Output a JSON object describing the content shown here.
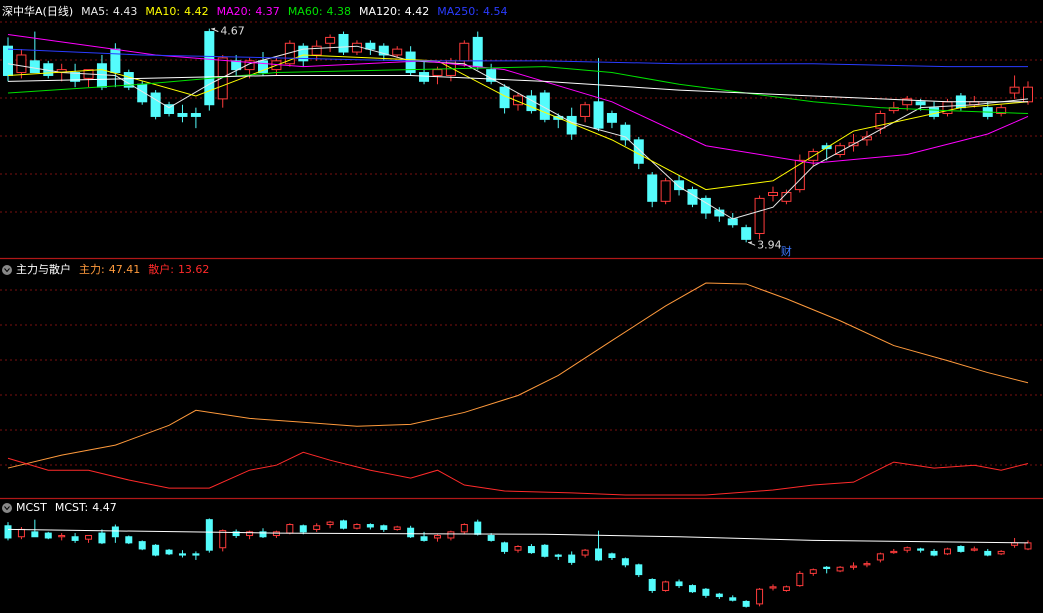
{
  "chart_data": [
    {
      "type": "candlestick",
      "title": "深中华A(日线)",
      "label_separator": ":",
      "up_color": "#ff3c3c",
      "down_color": "#54fcfc",
      "ylim": [
        3.9,
        4.72
      ],
      "open": [
        4.61,
        4.52,
        4.56,
        4.55,
        4.52,
        4.52,
        4.5,
        4.55,
        4.6,
        4.52,
        4.48,
        4.45,
        4.41,
        4.38,
        4.38,
        4.66,
        4.43,
        4.56,
        4.53,
        4.56,
        4.53,
        4.55,
        4.61,
        4.58,
        4.62,
        4.65,
        4.59,
        4.62,
        4.61,
        4.58,
        4.59,
        4.52,
        4.51,
        4.51,
        4.56,
        4.64,
        4.53,
        4.47,
        4.41,
        4.44,
        4.45,
        4.37,
        4.37,
        4.37,
        4.42,
        4.38,
        4.34,
        4.29,
        4.17,
        4.08,
        4.15,
        4.12,
        4.09,
        4.05,
        4.02,
        3.99,
        3.97,
        4.1,
        4.08,
        4.12,
        4.22,
        4.27,
        4.24,
        4.27,
        4.29,
        4.33,
        4.39,
        4.41,
        4.42,
        4.4,
        4.38,
        4.44,
        4.41,
        4.4,
        4.38,
        4.45,
        4.42
      ],
      "high": [
        4.64,
        4.6,
        4.66,
        4.56,
        4.55,
        4.55,
        4.53,
        4.58,
        4.62,
        4.53,
        4.49,
        4.46,
        4.42,
        4.41,
        4.4,
        4.67,
        4.58,
        4.58,
        4.57,
        4.59,
        4.57,
        4.63,
        4.62,
        4.63,
        4.65,
        4.66,
        4.63,
        4.63,
        4.62,
        4.61,
        4.61,
        4.56,
        4.54,
        4.57,
        4.63,
        4.66,
        4.55,
        4.48,
        4.45,
        4.46,
        4.46,
        4.38,
        4.4,
        4.42,
        4.57,
        4.39,
        4.35,
        4.3,
        4.18,
        4.16,
        4.17,
        4.13,
        4.1,
        4.06,
        4.04,
        4.0,
        4.1,
        4.13,
        4.12,
        4.24,
        4.26,
        4.28,
        4.28,
        4.31,
        4.32,
        4.39,
        4.42,
        4.44,
        4.43,
        4.42,
        4.43,
        4.45,
        4.44,
        4.42,
        4.41,
        4.51,
        4.49
      ],
      "low": [
        4.49,
        4.5,
        4.52,
        4.5,
        4.49,
        4.47,
        4.47,
        4.46,
        4.47,
        4.46,
        4.41,
        4.36,
        4.37,
        4.35,
        4.33,
        4.39,
        4.4,
        4.51,
        4.5,
        4.51,
        4.51,
        4.54,
        4.54,
        4.56,
        4.59,
        4.58,
        4.58,
        4.58,
        4.56,
        4.57,
        4.51,
        4.48,
        4.48,
        4.49,
        4.54,
        4.53,
        4.48,
        4.38,
        4.39,
        4.38,
        4.35,
        4.33,
        4.29,
        4.35,
        4.32,
        4.33,
        4.27,
        4.19,
        4.06,
        4.07,
        4.1,
        4.06,
        4.02,
        4.01,
        3.99,
        3.94,
        3.95,
        4.08,
        4.07,
        4.11,
        4.2,
        4.22,
        4.23,
        4.25,
        4.27,
        4.31,
        4.38,
        4.39,
        4.39,
        4.36,
        4.37,
        4.39,
        4.4,
        4.36,
        4.37,
        4.43,
        4.41
      ],
      "close": [
        4.51,
        4.58,
        4.52,
        4.51,
        4.53,
        4.49,
        4.53,
        4.47,
        4.52,
        4.47,
        4.42,
        4.37,
        4.38,
        4.37,
        4.37,
        4.41,
        4.57,
        4.53,
        4.56,
        4.52,
        4.56,
        4.62,
        4.56,
        4.61,
        4.64,
        4.59,
        4.62,
        4.6,
        4.58,
        4.6,
        4.52,
        4.49,
        4.53,
        4.56,
        4.62,
        4.54,
        4.49,
        4.4,
        4.44,
        4.39,
        4.36,
        4.36,
        4.31,
        4.41,
        4.33,
        4.35,
        4.29,
        4.21,
        4.08,
        4.15,
        4.12,
        4.07,
        4.04,
        4.03,
        4.0,
        3.95,
        4.09,
        4.11,
        4.11,
        4.22,
        4.25,
        4.26,
        4.27,
        4.28,
        4.3,
        4.38,
        4.4,
        4.43,
        4.41,
        4.37,
        4.42,
        4.4,
        4.42,
        4.37,
        4.4,
        4.47,
        4.47
      ],
      "series": [
        {
          "name": "MA5",
          "color": "#e8e8e8",
          "x": [
            0,
            4,
            8,
            12,
            15,
            18,
            22,
            26,
            30,
            34,
            38,
            42,
            46,
            50,
            54,
            57,
            60,
            64,
            68,
            72,
            76
          ],
          "values": [
            4.55,
            4.52,
            4.51,
            4.4,
            4.48,
            4.55,
            4.6,
            4.61,
            4.56,
            4.55,
            4.45,
            4.35,
            4.3,
            4.13,
            4.02,
            4.06,
            4.2,
            4.3,
            4.4,
            4.41,
            4.43
          ]
        },
        {
          "name": "MA10",
          "color": "#ffff00",
          "x": [
            0,
            7,
            14,
            22,
            32,
            37,
            45,
            52,
            57,
            63,
            71,
            76
          ],
          "values": [
            4.51,
            4.53,
            4.44,
            4.58,
            4.56,
            4.44,
            4.29,
            4.12,
            4.15,
            4.32,
            4.4,
            4.42
          ]
        },
        {
          "name": "MA20",
          "color": "#ff00ff",
          "x": [
            0,
            11,
            22,
            31,
            37,
            45,
            52,
            60,
            67,
            73,
            76
          ],
          "values": [
            4.65,
            4.58,
            4.54,
            4.56,
            4.53,
            4.42,
            4.27,
            4.21,
            4.24,
            4.31,
            4.37
          ]
        },
        {
          "name": "MA60",
          "color": "#00e000",
          "x": [
            0,
            10,
            20,
            30,
            40,
            45,
            50,
            55,
            60,
            65,
            70,
            76
          ],
          "values": [
            4.45,
            4.48,
            4.52,
            4.53,
            4.54,
            4.52,
            4.48,
            4.45,
            4.42,
            4.4,
            4.39,
            4.38
          ]
        },
        {
          "name": "MA120",
          "color": "#ffffff",
          "x": [
            0,
            10,
            20,
            30,
            40,
            50,
            60,
            70,
            76
          ],
          "values": [
            4.49,
            4.5,
            4.51,
            4.51,
            4.49,
            4.46,
            4.44,
            4.42,
            4.42
          ]
        },
        {
          "name": "MA250",
          "color": "#2a3cff",
          "x": [
            0,
            10,
            20,
            30,
            40,
            50,
            60,
            70,
            76
          ],
          "values": [
            4.6,
            4.58,
            4.57,
            4.56,
            4.56,
            4.55,
            4.55,
            4.54,
            4.54
          ]
        }
      ],
      "annotations": [
        {
          "value": 4.67,
          "x": 15
        },
        {
          "value": 3.94,
          "x": 55
        }
      ],
      "events": [
        {
          "label": "财",
          "x": 58,
          "color": "#3c78ff"
        }
      ]
    },
    {
      "type": "line",
      "title": "主力与散户",
      "ylim": [
        0,
        98
      ],
      "series": [
        {
          "name": "主力",
          "color": "#ff9a3c",
          "x": [
            0,
            4,
            8,
            12,
            14,
            18,
            22,
            26,
            30,
            34,
            38,
            41,
            45,
            49,
            52,
            55,
            58,
            62,
            66,
            70,
            73,
            76
          ],
          "values": [
            11.7,
            17.1,
            21.3,
            29.6,
            35.9,
            32.5,
            30.9,
            29.2,
            30.0,
            35.0,
            42.1,
            50.5,
            65.1,
            79.6,
            89.2,
            88.8,
            82.6,
            73.4,
            63.0,
            56.7,
            51.7,
            47.41
          ]
        },
        {
          "name": "散户",
          "color": "#ff2a2a",
          "x": [
            0,
            3,
            6,
            9,
            12,
            15,
            18,
            20,
            22,
            24,
            27,
            30,
            32,
            34,
            37,
            42,
            46,
            52,
            57,
            60,
            63,
            66,
            69,
            72,
            74,
            76
          ],
          "values": [
            15.8,
            10.8,
            10.8,
            6.7,
            3.3,
            3.3,
            10.8,
            12.9,
            18.3,
            15.0,
            10.8,
            7.5,
            10.8,
            4.6,
            2.1,
            1.3,
            0.4,
            0.4,
            2.5,
            4.6,
            5.8,
            14.2,
            11.7,
            12.9,
            10.8,
            13.62
          ]
        }
      ]
    },
    {
      "type": "line",
      "title": "MCST",
      "candles": true,
      "ylim": [
        3.92,
        4.69
      ],
      "series": [
        {
          "name": "MCST",
          "color": "#ffffff",
          "x": [
            0,
            20,
            40,
            50,
            60,
            76
          ],
          "values": [
            4.58,
            4.55,
            4.54,
            4.52,
            4.49,
            4.47
          ]
        }
      ]
    }
  ]
}
